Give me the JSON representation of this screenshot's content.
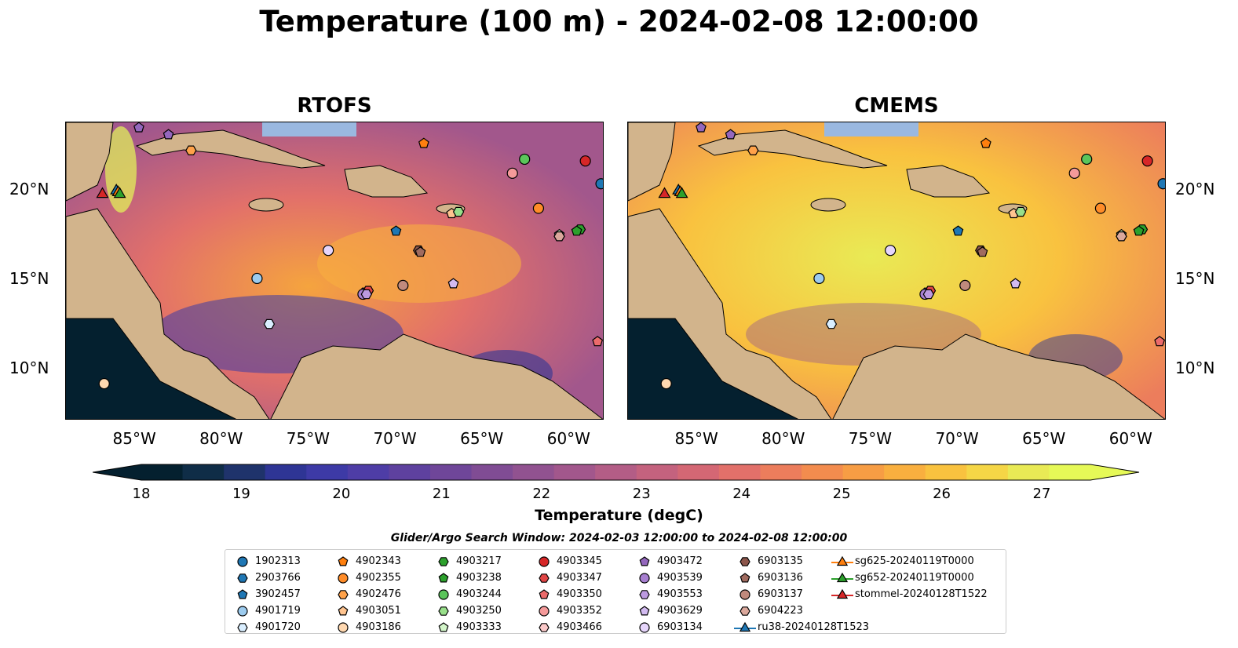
{
  "title": "Temperature (100 m) - 2024-02-08 12:00:00",
  "panels": [
    {
      "name": "RTOFS"
    },
    {
      "name": "CMEMS"
    }
  ],
  "lon_labels": [
    "85°W",
    "80°W",
    "75°W",
    "70°W",
    "65°W",
    "60°W"
  ],
  "lat_labels": [
    "20°N",
    "15°N",
    "10°N"
  ],
  "colorbar": {
    "label": "Temperature (degC)",
    "ticks": [
      "18",
      "19",
      "20",
      "21",
      "22",
      "23",
      "24",
      "25",
      "26",
      "27"
    ],
    "colors": [
      "#04202f",
      "#0f2d47",
      "#1f336b",
      "#2e3595",
      "#3d3aa6",
      "#4e3da6",
      "#5e419f",
      "#6f4699",
      "#804c94",
      "#915290",
      "#a2578c",
      "#b35d86",
      "#c4627e",
      "#d46774",
      "#e2706a",
      "#ec7d5c",
      "#f38c4e",
      "#f79d44",
      "#f9af3f",
      "#f9c23f",
      "#f5d646",
      "#e9ea55",
      "#e6f957"
    ],
    "extend": "both"
  },
  "search_window": "Glider/Argo Search Window: 2024-02-03 12:00:00 to 2024-02-08 12:00:00",
  "legend": [
    {
      "label": "1902313",
      "marker": "circle",
      "color": "#1f77b4"
    },
    {
      "label": "2903766",
      "marker": "hexagon",
      "color": "#1f77b4"
    },
    {
      "label": "3902457",
      "marker": "pentagon",
      "color": "#1f77b4"
    },
    {
      "label": "4901719",
      "marker": "circle",
      "color": "#9ccbee"
    },
    {
      "label": "4901720",
      "marker": "hexagon",
      "color": "#d9eeff"
    },
    {
      "label": "4902343",
      "marker": "pentagon",
      "color": "#ff7f0e"
    },
    {
      "label": "4902355",
      "marker": "circle",
      "color": "#ff8c28"
    },
    {
      "label": "4902476",
      "marker": "hexagon",
      "color": "#ffa24a"
    },
    {
      "label": "4903051",
      "marker": "pentagon",
      "color": "#ffc48f"
    },
    {
      "label": "4903186",
      "marker": "circle",
      "color": "#ffd8b0"
    },
    {
      "label": "4903217",
      "marker": "hexagon",
      "color": "#2ca02c"
    },
    {
      "label": "4903238",
      "marker": "pentagon",
      "color": "#2ca02c"
    },
    {
      "label": "4903244",
      "marker": "circle",
      "color": "#5bc55b"
    },
    {
      "label": "4903250",
      "marker": "hexagon",
      "color": "#98df8a"
    },
    {
      "label": "4903333",
      "marker": "pentagon",
      "color": "#d3f5c9"
    },
    {
      "label": "4903345",
      "marker": "circle",
      "color": "#d62728"
    },
    {
      "label": "4903347",
      "marker": "hexagon",
      "color": "#e04545"
    },
    {
      "label": "4903350",
      "marker": "pentagon",
      "color": "#ec6b6b"
    },
    {
      "label": "4903352",
      "marker": "circle",
      "color": "#f59a9a"
    },
    {
      "label": "4903466",
      "marker": "hexagon",
      "color": "#fbc9c9"
    },
    {
      "label": "4903472",
      "marker": "pentagon",
      "color": "#9467bd"
    },
    {
      "label": "4903539",
      "marker": "circle",
      "color": "#a77fd0"
    },
    {
      "label": "4903553",
      "marker": "hexagon",
      "color": "#bc9ae0"
    },
    {
      "label": "4903629",
      "marker": "pentagon",
      "color": "#d2baf0"
    },
    {
      "label": "6903134",
      "marker": "circle",
      "color": "#e6d5fb"
    },
    {
      "label": "6903135",
      "marker": "hexagon",
      "color": "#8c564b"
    },
    {
      "label": "6903136",
      "marker": "pentagon",
      "color": "#a06b5f"
    },
    {
      "label": "6903137",
      "marker": "circle",
      "color": "#c08a7d"
    },
    {
      "label": "6904223",
      "marker": "hexagon",
      "color": "#dba89c"
    },
    {
      "label": "ru38-20240128T1523",
      "marker": "triangle-line",
      "color": "#1f77b4"
    },
    {
      "label": "sg625-20240119T0000",
      "marker": "triangle-line",
      "color": "#ff7f0e"
    },
    {
      "label": "sg652-20240119T0000",
      "marker": "triangle-line",
      "color": "#2ca02c"
    },
    {
      "label": "stommel-20240128T1522",
      "marker": "triangle-line",
      "color": "#d62728"
    }
  ],
  "floats": [
    {
      "label": "1902313",
      "lon": -58.2,
      "lat": 20.5
    },
    {
      "label": "2903766",
      "lon": -71.8,
      "lat": 14.3
    },
    {
      "label": "3902457",
      "lon": -70.0,
      "lat": 17.8
    },
    {
      "label": "4901719",
      "lon": -78.0,
      "lat": 15.1
    },
    {
      "label": "4901720",
      "lon": -77.3,
      "lat": 12.5
    },
    {
      "label": "4902343",
      "lon": -68.4,
      "lat": 22.8
    },
    {
      "label": "4902355",
      "lon": -61.8,
      "lat": 19.1
    },
    {
      "label": "4902476",
      "lon": -81.8,
      "lat": 22.4
    },
    {
      "label": "4903051",
      "lon": -66.8,
      "lat": 18.8
    },
    {
      "label": "4903186",
      "lon": -86.8,
      "lat": 9.1
    },
    {
      "label": "4903217",
      "lon": -59.4,
      "lat": 17.9
    },
    {
      "label": "4903238",
      "lon": -59.6,
      "lat": 17.8
    },
    {
      "label": "4903244",
      "lon": -62.6,
      "lat": 21.9
    },
    {
      "label": "4903250",
      "lon": -66.4,
      "lat": 18.9
    },
    {
      "label": "4903333",
      "lon": -60.6,
      "lat": 17.6
    },
    {
      "label": "4903345",
      "lon": -59.1,
      "lat": 21.8
    },
    {
      "label": "4903347",
      "lon": -71.6,
      "lat": 14.4
    },
    {
      "label": "4903350",
      "lon": -58.4,
      "lat": 11.5
    },
    {
      "label": "4903352",
      "lon": -63.3,
      "lat": 21.1
    },
    {
      "label": "4903466",
      "lon": -60.6,
      "lat": 17.5
    },
    {
      "label": "4903472",
      "lon": -84.8,
      "lat": 23.7
    },
    {
      "label": "4903539",
      "lon": -71.9,
      "lat": 14.2
    },
    {
      "label": "4903553",
      "lon": -71.7,
      "lat": 14.2
    },
    {
      "label": "4903629",
      "lon": -66.7,
      "lat": 14.8
    },
    {
      "label": "6903134",
      "lon": -73.9,
      "lat": 16.7
    },
    {
      "label": "6903135",
      "lon": -68.7,
      "lat": 16.7
    },
    {
      "label": "6903136",
      "lon": -68.6,
      "lat": 16.6
    },
    {
      "label": "6903137",
      "lon": -69.6,
      "lat": 14.7
    },
    {
      "label": "6904223",
      "lon": -60.6,
      "lat": 17.5
    },
    {
      "label": "4903472b",
      "lon": -83.1,
      "lat": 23.3
    }
  ],
  "gliders": [
    {
      "label": "ru38-20240128T1523",
      "lon": -86.1,
      "lat": 20.1
    },
    {
      "label": "sg625-20240119T0000",
      "lon": -86.0,
      "lat": 20.0
    },
    {
      "label": "sg652-20240119T0000",
      "lon": -85.9,
      "lat": 19.9
    },
    {
      "label": "stommel-20240128T1522",
      "lon": -86.9,
      "lat": 19.9
    }
  ]
}
